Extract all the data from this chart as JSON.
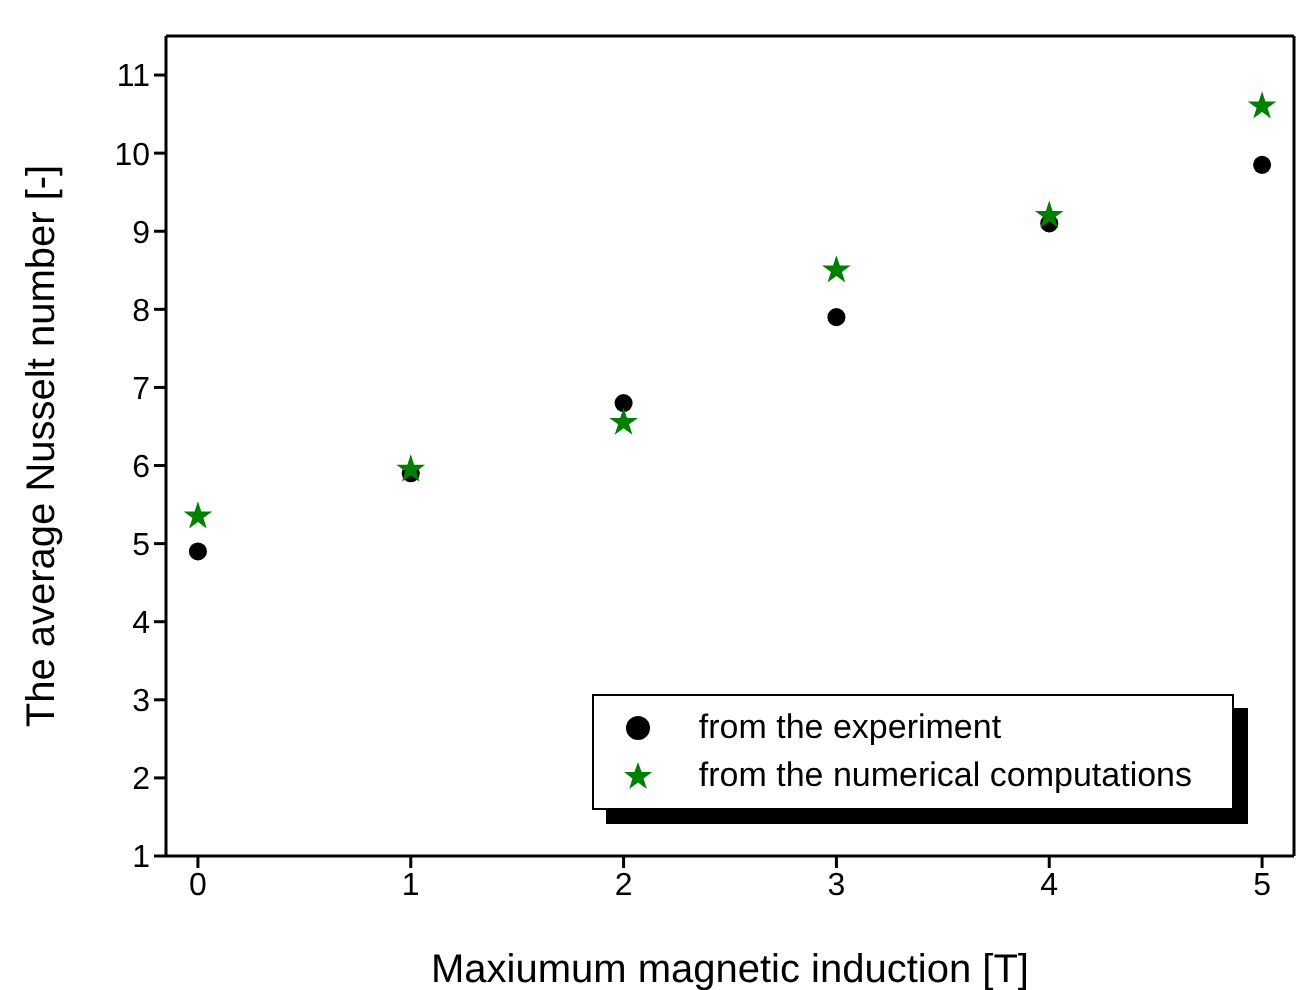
{
  "chart_data": {
    "type": "scatter",
    "xlabel": "Maxiumum magnetic induction [T]",
    "ylabel": "The average Nusselt number [-]",
    "x": [
      0,
      1,
      2,
      3,
      4,
      5
    ],
    "xlim": [
      -0.15,
      5.15
    ],
    "xticks": [
      0,
      1,
      2,
      3,
      4,
      5
    ],
    "ylim": [
      1,
      11.5
    ],
    "yticks": [
      1,
      2,
      3,
      4,
      5,
      6,
      7,
      8,
      9,
      10,
      11
    ],
    "legend": "bottom right",
    "series": [
      {
        "name": "from the experiment",
        "color": "#000000",
        "marker": "circle",
        "values": [
          4.9,
          5.9,
          6.8,
          7.9,
          9.1,
          9.85
        ]
      },
      {
        "name": "from the numerical computations",
        "color": "#008000",
        "marker": "star",
        "values": [
          5.35,
          5.95,
          6.55,
          8.5,
          9.2,
          10.6
        ]
      }
    ]
  }
}
